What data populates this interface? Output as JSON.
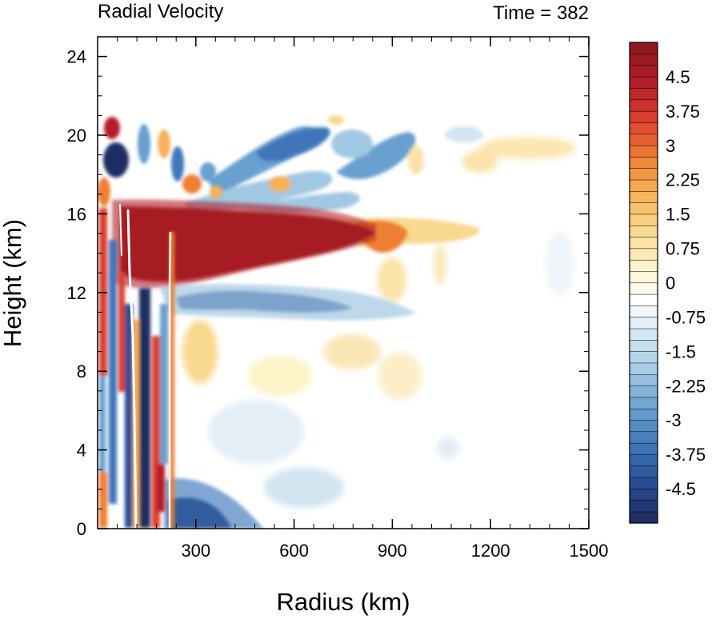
{
  "chart_data": {
    "type": "heatmap",
    "title_left": "Radial Velocity",
    "title_right": "Time = 382",
    "xlabel": "Radius (km)",
    "ylabel": "Height (km)",
    "xlim": [
      0,
      1500
    ],
    "ylim": [
      0,
      25
    ],
    "xticks": [
      300,
      600,
      900,
      1200,
      1500
    ],
    "yticks": [
      0,
      4,
      8,
      12,
      16,
      20,
      24
    ],
    "colorbar": {
      "min": -5.25,
      "max": 5.25,
      "step": 0.25,
      "label_values": [
        -4.5,
        -3.75,
        -3,
        -2.25,
        -1.5,
        -0.75,
        0,
        0.75,
        1.5,
        2.25,
        3,
        3.75,
        4.5
      ],
      "labels": [
        "-4.5",
        "-3.75",
        "-3",
        "-2.25",
        "-1.5",
        "-0.75",
        "0",
        "0.75",
        "1.5",
        "2.25",
        "3",
        "3.75",
        "4.5"
      ],
      "colors": [
        "#1f2e63",
        "#2a4f97",
        "#3f77bb",
        "#68a0cf",
        "#a1c8e3",
        "#d2e5f1",
        "#ffffff",
        "#fdf2c8",
        "#f8d98f",
        "#f6b156",
        "#ef7f33",
        "#dc3f2e",
        "#b41f28",
        "#921a1f"
      ]
    },
    "features": [
      {
        "name": "strong outflow layer",
        "x": [
          60,
          800
        ],
        "y": [
          12.5,
          16
        ],
        "value": 5.5
      },
      {
        "name": "outflow extension",
        "x": [
          800,
          1100
        ],
        "y": [
          14,
          16
        ],
        "value": 2.5
      },
      {
        "name": "mid-level inflow",
        "x": [
          240,
          520
        ],
        "y": [
          11,
          12.5
        ],
        "value": -3.8
      },
      {
        "name": "upper inflow band",
        "x": [
          280,
          1000
        ],
        "y": [
          16.5,
          20.5
        ],
        "value": -2.5
      },
      {
        "name": "upper weak outflow",
        "x": [
          1100,
          1500
        ],
        "y": [
          18.5,
          20.5
        ],
        "value": 0.8
      },
      {
        "name": "low-level inflow",
        "x": [
          220,
          420
        ],
        "y": [
          0,
          2
        ],
        "value": -4.5
      },
      {
        "name": "inner-core alternating",
        "x": [
          0,
          220
        ],
        "y": [
          0,
          22
        ],
        "value": "alternating"
      }
    ]
  }
}
